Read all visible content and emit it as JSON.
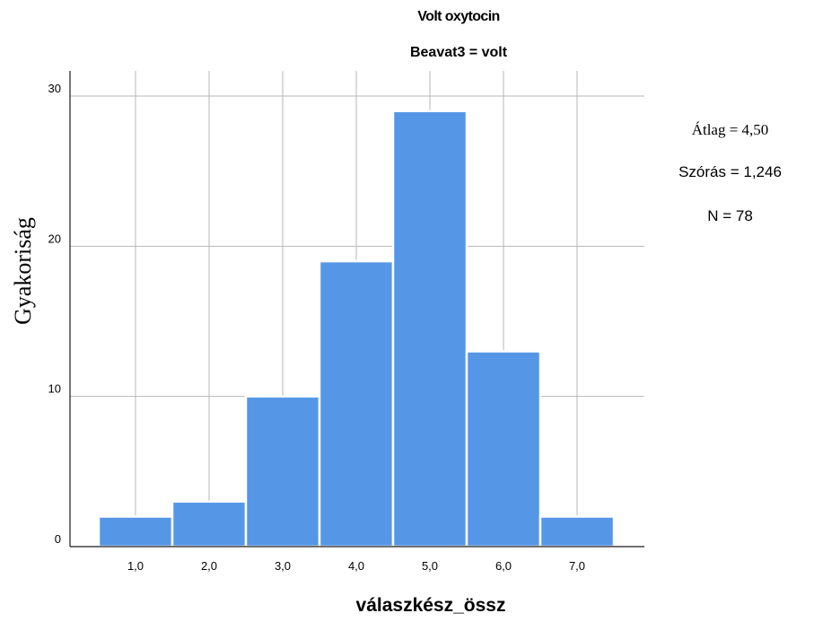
{
  "chart_data": {
    "type": "bar",
    "title": "Volt oxytocin",
    "subtitle": "Beavat3 = volt",
    "xlabel": "válaszkész_össz",
    "ylabel": "Gyakoriság",
    "categories": [
      "1,0",
      "2,0",
      "3,0",
      "4,0",
      "5,0",
      "6,0",
      "7,0"
    ],
    "values": [
      2,
      3,
      10,
      19,
      29,
      13,
      2
    ],
    "ylim": [
      0,
      30
    ],
    "yticks": [
      0,
      10,
      20,
      30
    ],
    "ytick_labels": [
      "0",
      "10",
      "20",
      "30"
    ],
    "grid": true,
    "colors": {
      "bar": "#5597e6",
      "bar_edge": "#ffffff",
      "grid": "#b7b7b7",
      "axis": "#1a1a1a"
    }
  },
  "stats": {
    "mean_label": "Átlag = 4,50",
    "sd_label": "Szórás = 1,246",
    "n_label": "N = 78"
  }
}
